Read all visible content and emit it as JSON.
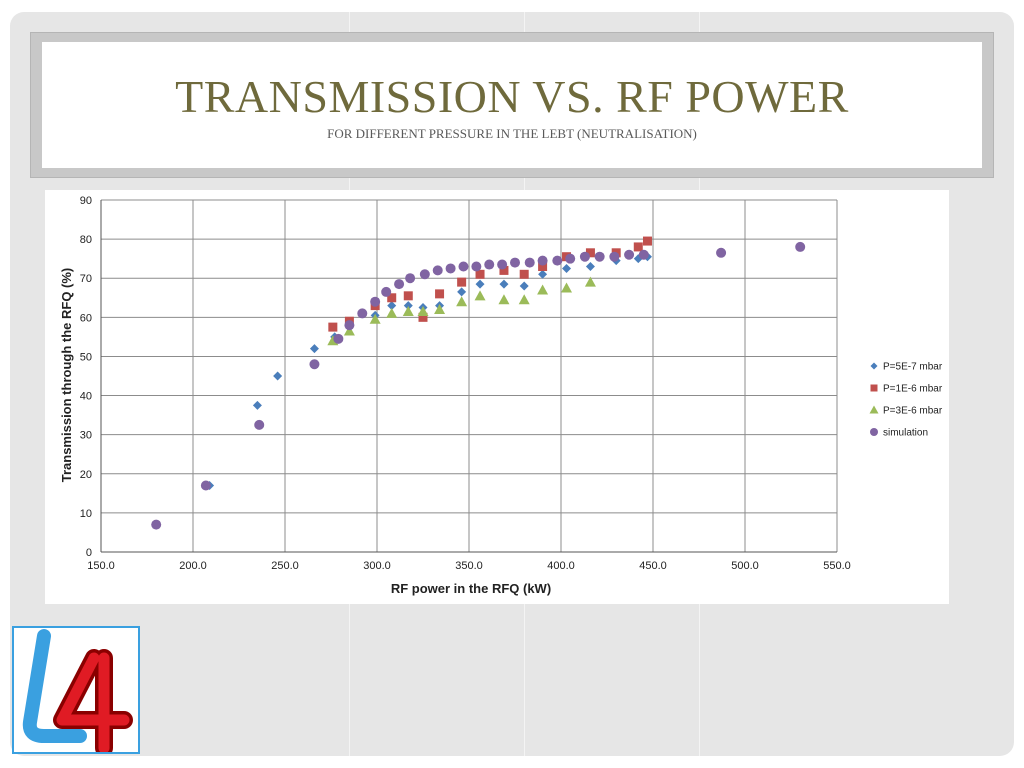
{
  "slide": {
    "title": "TRANSMISSION VS. RF POWER",
    "subtitle": "FOR DIFFERENT PRESSURE IN THE LEBT (NEUTRALISATION)",
    "logo_text": "L4",
    "colors": {
      "title": "#6f6a3c",
      "background": "#e6e6e6",
      "logo_blue": "#3aa0e0",
      "logo_red": "#e01b24"
    }
  },
  "chart_data": {
    "type": "scatter",
    "xlabel": "RF power in the RFQ (kW)",
    "ylabel": "Transmission through the RFQ (%)",
    "xlim": [
      150,
      550
    ],
    "ylim": [
      0,
      90
    ],
    "x_ticks": [
      "150.0",
      "200.0",
      "250.0",
      "300.0",
      "350.0",
      "400.0",
      "450.0",
      "500.0",
      "550.0"
    ],
    "y_ticks": [
      "0",
      "10",
      "20",
      "30",
      "40",
      "50",
      "60",
      "70",
      "80",
      "90"
    ],
    "grid": true,
    "legend_position": "right",
    "series": [
      {
        "name": "P=5E-7 mbar",
        "marker": "diamond",
        "color": "#4a7ebb",
        "points": [
          [
            209,
            17
          ],
          [
            235,
            37.5
          ],
          [
            246,
            45
          ],
          [
            266,
            52
          ],
          [
            277,
            55
          ],
          [
            285,
            58
          ],
          [
            299,
            60.5
          ],
          [
            308,
            63
          ],
          [
            317,
            63
          ],
          [
            325,
            62.5
          ],
          [
            334,
            63
          ],
          [
            346,
            66.5
          ],
          [
            356,
            68.5
          ],
          [
            369,
            68.5
          ],
          [
            380,
            68
          ],
          [
            390,
            71
          ],
          [
            403,
            72.5
          ],
          [
            416,
            73
          ],
          [
            430,
            74.5
          ],
          [
            442,
            75
          ],
          [
            447,
            75.5
          ]
        ]
      },
      {
        "name": "P=1E-6 mbar",
        "marker": "square",
        "color": "#c0504d",
        "points": [
          [
            276,
            57.5
          ],
          [
            285,
            59
          ],
          [
            299,
            63
          ],
          [
            308,
            65
          ],
          [
            317,
            65.5
          ],
          [
            325,
            60
          ],
          [
            334,
            66
          ],
          [
            346,
            69
          ],
          [
            356,
            71
          ],
          [
            369,
            72
          ],
          [
            380,
            71
          ],
          [
            390,
            73
          ],
          [
            403,
            75.5
          ],
          [
            416,
            76.5
          ],
          [
            430,
            76.5
          ],
          [
            442,
            78
          ],
          [
            447,
            79.5
          ]
        ]
      },
      {
        "name": "P=3E-6 mbar",
        "marker": "triangle",
        "color": "#9bbb59",
        "points": [
          [
            276,
            54
          ],
          [
            285,
            56.5
          ],
          [
            299,
            59.5
          ],
          [
            308,
            61
          ],
          [
            317,
            61.5
          ],
          [
            325,
            61.5
          ],
          [
            334,
            62
          ],
          [
            346,
            64
          ],
          [
            356,
            65.5
          ],
          [
            369,
            64.5
          ],
          [
            380,
            64.5
          ],
          [
            390,
            67
          ],
          [
            403,
            67.5
          ],
          [
            416,
            69
          ]
        ]
      },
      {
        "name": "simulation",
        "marker": "circle",
        "color": "#8064a2",
        "points": [
          [
            180,
            7
          ],
          [
            207,
            17
          ],
          [
            236,
            32.5
          ],
          [
            266,
            48
          ],
          [
            279,
            54.5
          ],
          [
            285,
            58
          ],
          [
            292,
            61
          ],
          [
            299,
            64
          ],
          [
            305,
            66.5
          ],
          [
            312,
            68.5
          ],
          [
            318,
            70
          ],
          [
            326,
            71
          ],
          [
            333,
            72
          ],
          [
            340,
            72.5
          ],
          [
            347,
            73
          ],
          [
            354,
            73
          ],
          [
            361,
            73.5
          ],
          [
            368,
            73.5
          ],
          [
            375,
            74
          ],
          [
            383,
            74
          ],
          [
            390,
            74.5
          ],
          [
            398,
            74.5
          ],
          [
            405,
            75
          ],
          [
            413,
            75.5
          ],
          [
            421,
            75.5
          ],
          [
            429,
            75.5
          ],
          [
            437,
            76
          ],
          [
            445,
            76
          ],
          [
            487,
            76.5
          ],
          [
            530,
            78
          ]
        ]
      }
    ]
  }
}
